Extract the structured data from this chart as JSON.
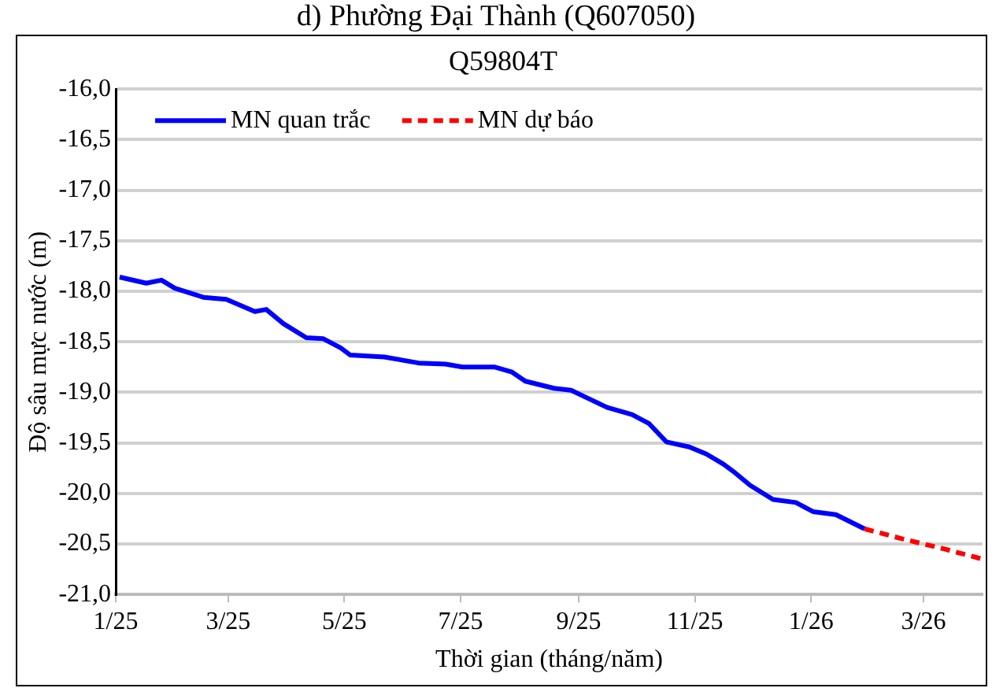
{
  "chart_data": {
    "type": "line",
    "title": "d) Phường Đại Thành (Q607050)",
    "subtitle": "Q59804T",
    "xlabel": "Thời gian (tháng/năm)",
    "ylabel": "Độ sâu mực nước (m)",
    "xlim": [
      "2025-01-01",
      "2026-04-01"
    ],
    "xticks": [
      {
        "value": "2025-01-01",
        "label": "1/25"
      },
      {
        "value": "2025-03-01",
        "label": "3/25"
      },
      {
        "value": "2025-05-01",
        "label": "5/25"
      },
      {
        "value": "2025-07-01",
        "label": "7/25"
      },
      {
        "value": "2025-09-01",
        "label": "9/25"
      },
      {
        "value": "2025-11-01",
        "label": "11/25"
      },
      {
        "value": "2026-01-01",
        "label": "1/26"
      },
      {
        "value": "2026-03-01",
        "label": "3/26"
      }
    ],
    "ylim": [
      -21,
      -16
    ],
    "yticks": [
      {
        "value": -21,
        "label": "-21,0"
      },
      {
        "value": -20.5,
        "label": "-20,5"
      },
      {
        "value": -20,
        "label": "-20,0"
      },
      {
        "value": -19.5,
        "label": "-19,5"
      },
      {
        "value": -19,
        "label": "-19,0"
      },
      {
        "value": -18.5,
        "label": "-18,5"
      },
      {
        "value": -18,
        "label": "-18,0"
      },
      {
        "value": -17.5,
        "label": "-17,5"
      },
      {
        "value": -17,
        "label": "-17,0"
      },
      {
        "value": -16.5,
        "label": "-16,5"
      },
      {
        "value": -16,
        "label": "-16,0"
      }
    ],
    "grid": "y",
    "legend": "top left",
    "marker": "none",
    "series": [
      {
        "name": "MN quan trắc",
        "color": "#0000ff",
        "line_style": "solid",
        "x": [
          "2025-01-03",
          "2025-01-17",
          "2025-01-25",
          "2025-02-01",
          "2025-02-16",
          "2025-02-28",
          "2025-03-15",
          "2025-03-21",
          "2025-03-30",
          "2025-04-11",
          "2025-04-20",
          "2025-04-29",
          "2025-05-04",
          "2025-05-22",
          "2025-06-09",
          "2025-06-23",
          "2025-07-02",
          "2025-07-19",
          "2025-07-28",
          "2025-08-04",
          "2025-08-19",
          "2025-08-28",
          "2025-09-06",
          "2025-09-16",
          "2025-09-29",
          "2025-10-08",
          "2025-10-17",
          "2025-10-29",
          "2025-11-07",
          "2025-11-16",
          "2025-11-21",
          "2025-11-30",
          "2025-12-12",
          "2025-12-24",
          "2026-01-02",
          "2026-01-14",
          "2026-01-29"
        ],
        "values": [
          -17.86,
          -17.92,
          -17.89,
          -17.97,
          -18.06,
          -18.08,
          -18.2,
          -18.18,
          -18.32,
          -18.46,
          -18.47,
          -18.56,
          -18.63,
          -18.65,
          -18.71,
          -18.72,
          -18.75,
          -18.75,
          -18.8,
          -18.89,
          -18.96,
          -18.98,
          -19.06,
          -19.15,
          -19.22,
          -19.31,
          -19.49,
          -19.54,
          -19.61,
          -19.71,
          -19.78,
          -19.92,
          -20.06,
          -20.09,
          -20.18,
          -20.21,
          -20.35
        ]
      },
      {
        "name": "MN dự báo",
        "color": "#ff0000",
        "line_style": "dashed",
        "x": [
          "2026-01-29",
          "2026-02-18",
          "2026-03-12",
          "2026-04-01"
        ],
        "values": [
          -20.35,
          -20.45,
          -20.55,
          -20.65
        ]
      }
    ]
  }
}
